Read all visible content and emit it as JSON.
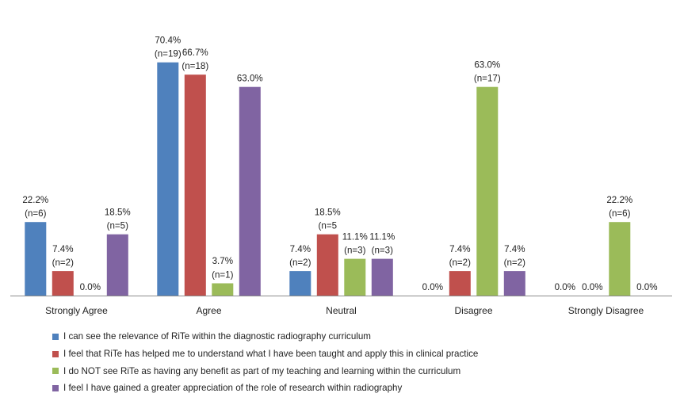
{
  "chart_data": {
    "type": "bar",
    "categories": [
      "Strongly Agree",
      "Agree",
      "Neutral",
      "Disagree",
      "Strongly Disagree"
    ],
    "series": [
      {
        "name": "I can see the relevance of RiTe within the diagnostic radiography curriculum",
        "color": "#4F81BD",
        "values": [
          22.2,
          70.4,
          7.4,
          0.0,
          0.0
        ],
        "labels": [
          [
            "22.2%",
            "(n=6)"
          ],
          [
            "70.4%",
            "(n=19)"
          ],
          [
            "7.4%",
            "(n=2)"
          ],
          [
            "0.0%"
          ],
          [
            "0.0%"
          ]
        ]
      },
      {
        "name": "I feel that RiTe has helped me to understand what I have been taught and apply this in clinical practice",
        "color": "#C0504D",
        "values": [
          7.4,
          66.7,
          18.5,
          7.4,
          0.0
        ],
        "labels": [
          [
            "7.4%",
            "(n=2)"
          ],
          [
            "66.7%",
            "(n=18)"
          ],
          [
            "18.5%",
            "(n=5"
          ],
          [
            "7.4%",
            "(n=2)"
          ],
          [
            "0.0%"
          ]
        ]
      },
      {
        "name": "I do NOT see RiTe as having any benefit as part of my teaching and learning within the curriculum",
        "color": "#9BBB59",
        "values": [
          0.0,
          3.7,
          11.1,
          63.0,
          22.2
        ],
        "labels": [
          [
            "0.0%"
          ],
          [
            "3.7%",
            "(n=1)"
          ],
          [
            "11.1%",
            "(n=3)"
          ],
          [
            "63.0%",
            "(n=17)"
          ],
          [
            "22.2%",
            "(n=6)"
          ]
        ]
      },
      {
        "name": "I feel I have gained a greater appreciation of the role of research within radiography",
        "color": "#8064A2",
        "values": [
          18.5,
          63.0,
          11.1,
          7.4,
          0.0
        ],
        "labels": [
          [
            "18.5%",
            "(n=5)"
          ],
          [
            "63.0%"
          ],
          [
            "11.1%",
            "(n=3)"
          ],
          [
            "7.4%",
            "(n=2)"
          ],
          [
            "0.0%"
          ]
        ]
      }
    ],
    "ylim": [
      0,
      75
    ],
    "grid": false,
    "legend_position": "bottom"
  }
}
